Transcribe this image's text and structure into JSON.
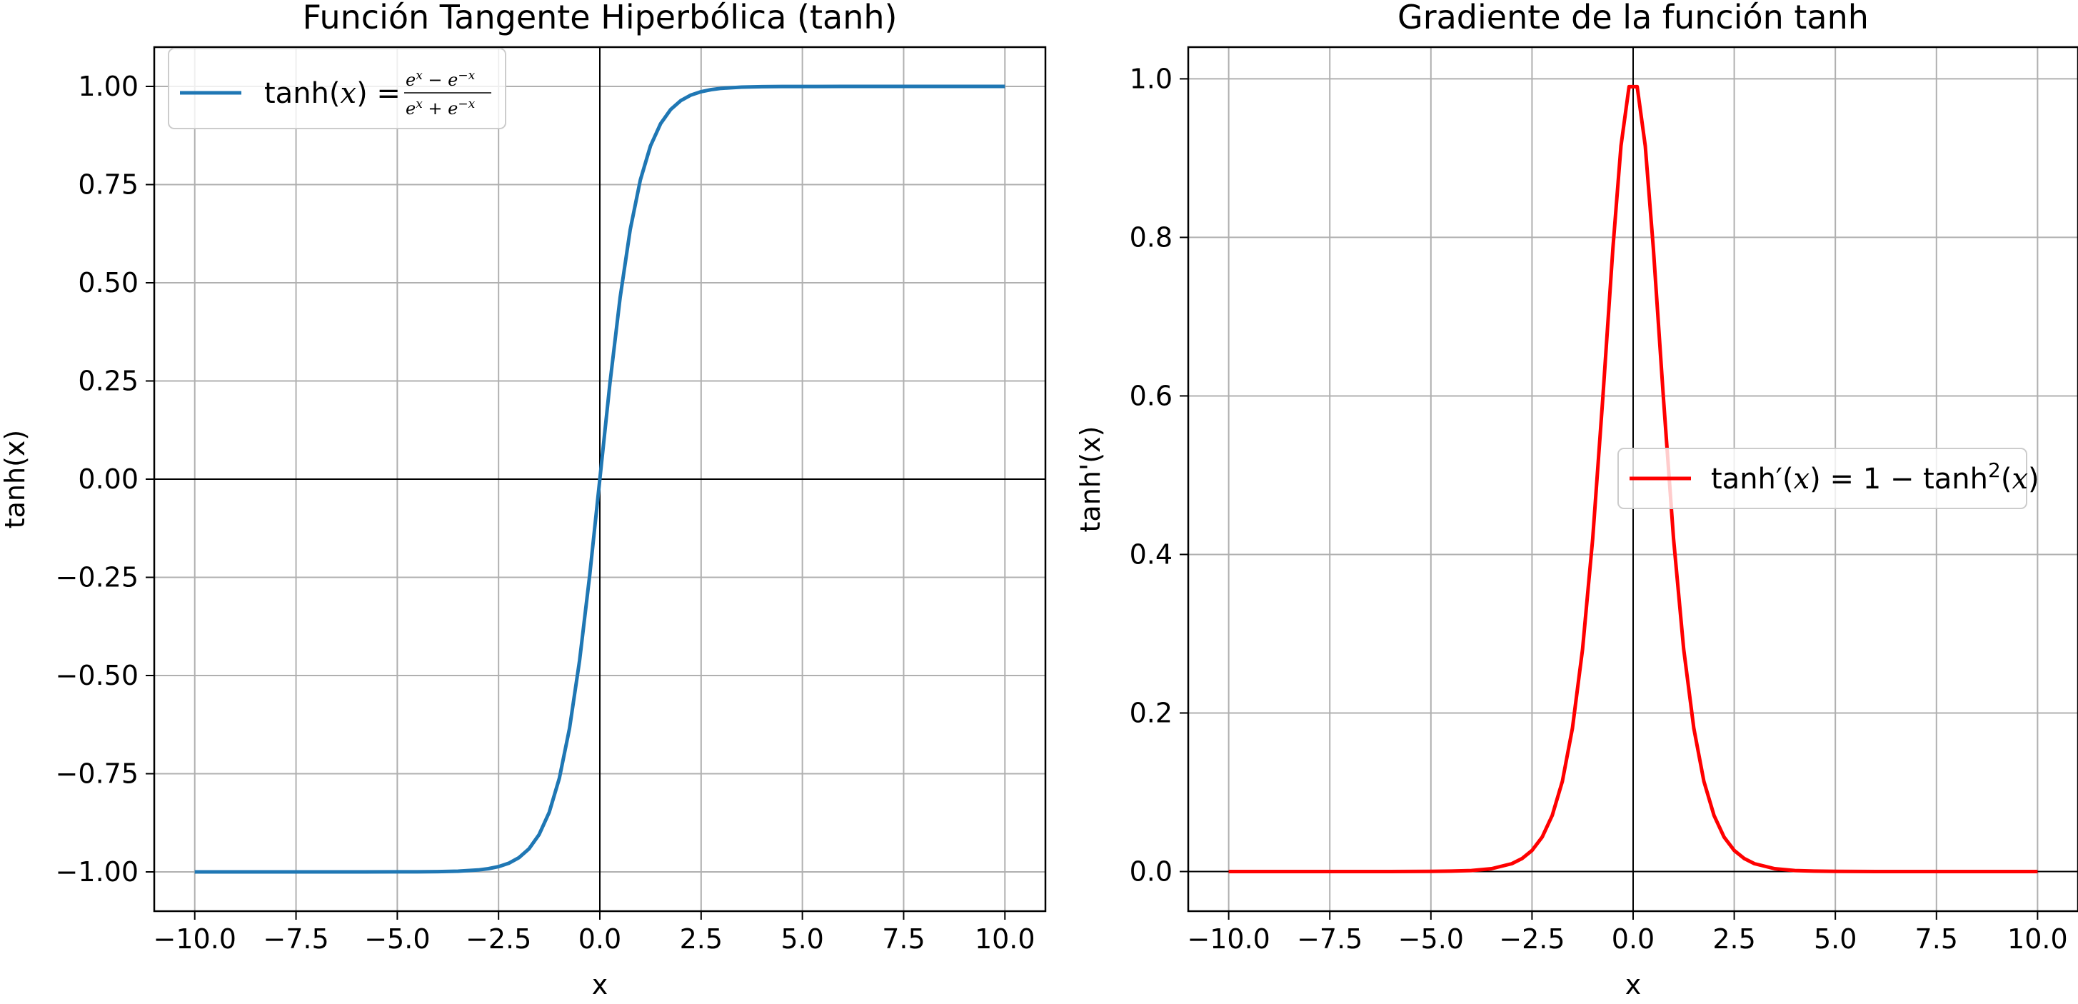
{
  "chart_data": [
    {
      "type": "line",
      "title": "Función Tangente Hiperbólica (tanh)",
      "xlabel": "x",
      "ylabel": "tanh(x)",
      "xlim": [
        -11,
        11
      ],
      "ylim": [
        -1.1,
        1.1
      ],
      "xticks": [
        -10,
        -7.5,
        -5,
        -2.5,
        0,
        2.5,
        5,
        7.5,
        10
      ],
      "xtick_labels": [
        "−10.0",
        "−7.5",
        "−5.0",
        "−2.5",
        "0.0",
        "2.5",
        "5.0",
        "7.5",
        "10.0"
      ],
      "yticks": [
        -1,
        -0.75,
        -0.5,
        -0.25,
        0,
        0.25,
        0.5,
        0.75,
        1
      ],
      "ytick_labels": [
        "−1.00",
        "−0.75",
        "−0.50",
        "−0.25",
        "0.00",
        "0.25",
        "0.50",
        "0.75",
        "1.00"
      ],
      "grid": true,
      "legend_position": "upper left",
      "series": [
        {
          "name": "tanh(x) = (e^x − e^−x)/(e^x + e^−x)",
          "color": "#1f77b4",
          "x": [
            -10,
            -9,
            -8,
            -7,
            -6,
            -5,
            -4.5,
            -4,
            -3.5,
            -3,
            -2.75,
            -2.5,
            -2.25,
            -2,
            -1.75,
            -1.5,
            -1.25,
            -1,
            -0.75,
            -0.5,
            -0.25,
            0,
            0.25,
            0.5,
            0.75,
            1,
            1.25,
            1.5,
            1.75,
            2,
            2.25,
            2.5,
            2.75,
            3,
            3.5,
            4,
            4.5,
            5,
            6,
            7,
            8,
            9,
            10
          ],
          "y": [
            -1,
            -1,
            -1,
            -1,
            -1,
            -0.9999,
            -0.9998,
            -0.9993,
            -0.9982,
            -0.9951,
            -0.9918,
            -0.9866,
            -0.978,
            -0.964,
            -0.9414,
            -0.9051,
            -0.8483,
            -0.7616,
            -0.6351,
            -0.4621,
            -0.2449,
            0,
            0.2449,
            0.4621,
            0.6351,
            0.7616,
            0.8483,
            0.9051,
            0.9414,
            0.964,
            0.978,
            0.9866,
            0.9918,
            0.9951,
            0.9982,
            0.9993,
            0.9998,
            0.9999,
            1,
            1,
            1,
            1,
            1
          ]
        }
      ]
    },
    {
      "type": "line",
      "title": "Gradiente de la función tanh",
      "xlabel": "x",
      "ylabel": "tanh'(x)",
      "xlim": [
        -11,
        11
      ],
      "ylim": [
        -0.05,
        1.04
      ],
      "xticks": [
        -10,
        -7.5,
        -5,
        -2.5,
        0,
        2.5,
        5,
        7.5,
        10
      ],
      "xtick_labels": [
        "−10.0",
        "−7.5",
        "−5.0",
        "−2.5",
        "0.0",
        "2.5",
        "5.0",
        "7.5",
        "10.0"
      ],
      "yticks": [
        0,
        0.2,
        0.4,
        0.6,
        0.8,
        1.0
      ],
      "ytick_labels": [
        "0.0",
        "0.2",
        "0.4",
        "0.6",
        "0.8",
        "1.0"
      ],
      "grid": true,
      "legend_position": "center right",
      "series": [
        {
          "name": "tanh′(x) = 1 − tanh²(x)",
          "color": "#ff0000",
          "x": [
            -10,
            -8,
            -6,
            -5,
            -4.5,
            -4,
            -3.5,
            -3,
            -2.75,
            -2.5,
            -2.25,
            -2,
            -1.75,
            -1.5,
            -1.25,
            -1,
            -0.75,
            -0.5,
            -0.3,
            -0.1,
            0.1,
            0.3,
            0.5,
            0.75,
            1,
            1.25,
            1.5,
            1.75,
            2,
            2.25,
            2.5,
            2.75,
            3,
            3.5,
            4,
            4.5,
            5,
            6,
            8,
            10
          ],
          "y": [
            0,
            0,
            0,
            0.0002,
            0.0005,
            0.0013,
            0.0036,
            0.0099,
            0.0163,
            0.0266,
            0.0434,
            0.0707,
            0.1138,
            0.1807,
            0.2805,
            0.42,
            0.5966,
            0.7864,
            0.9154,
            0.9901,
            0.9901,
            0.9154,
            0.7864,
            0.5966,
            0.42,
            0.2805,
            0.1807,
            0.1138,
            0.0707,
            0.0434,
            0.0266,
            0.0163,
            0.0099,
            0.0036,
            0.0013,
            0.0005,
            0.0002,
            0,
            0,
            0
          ]
        }
      ]
    }
  ]
}
